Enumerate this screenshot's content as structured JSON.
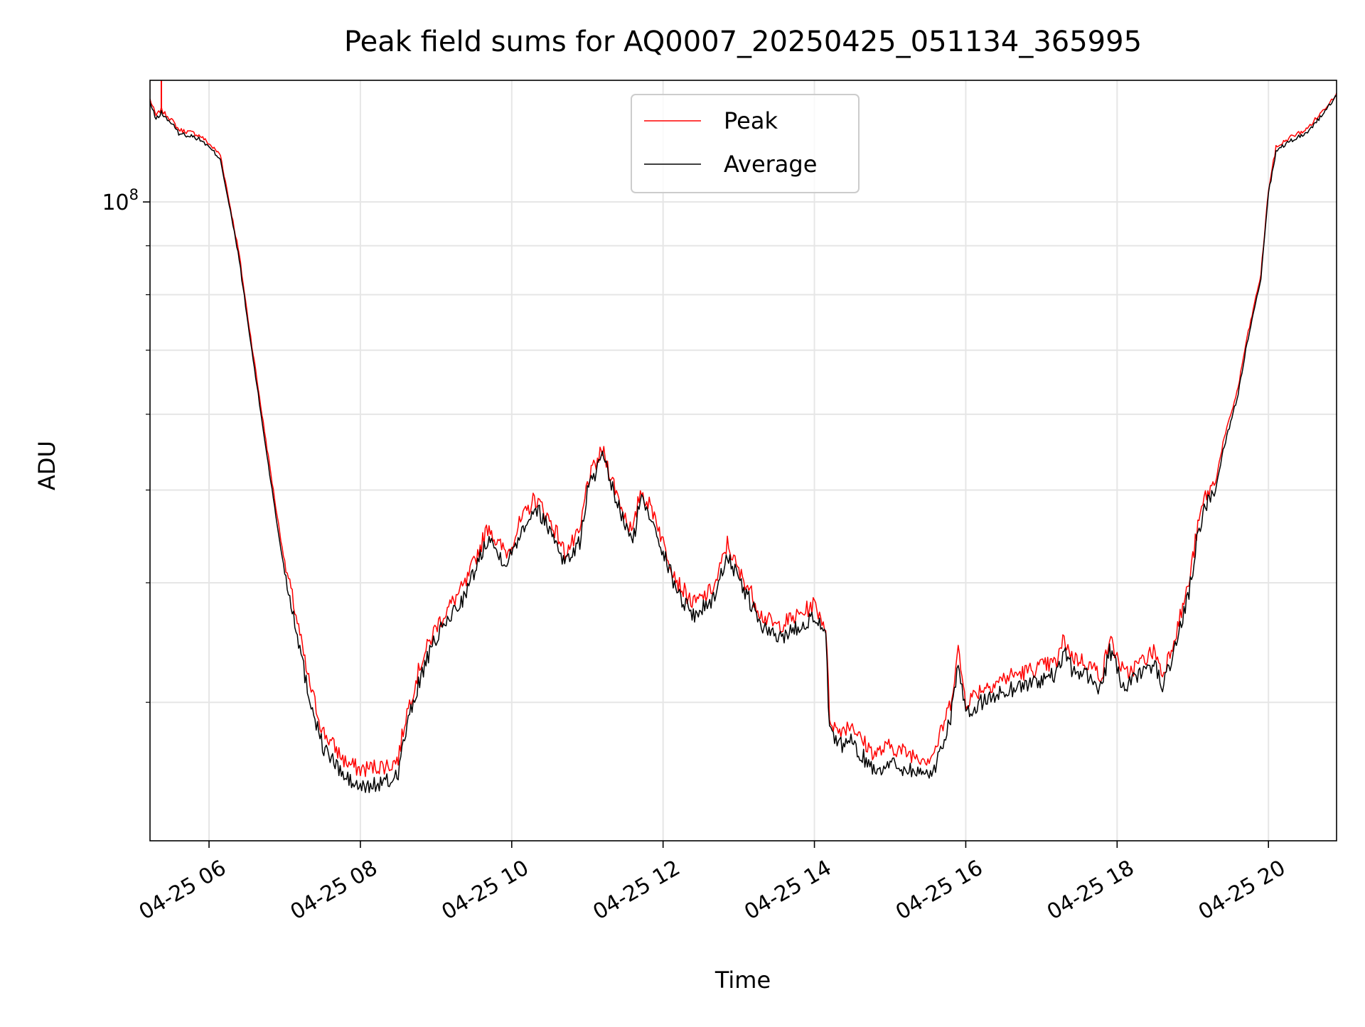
{
  "chart_data": {
    "type": "line",
    "title": "Peak field sums for AQ0007_20250425_051134_365995",
    "xlabel": "Time",
    "ylabel": "ADU",
    "yscale": "log",
    "ylim": [
      21500000,
      134000000
    ],
    "xlim_hours": [
      5.22,
      20.9
    ],
    "grid": true,
    "legend_position": "top-center",
    "x_tick_labels": [
      {
        "hour": 6,
        "label": "04-25 06"
      },
      {
        "hour": 8,
        "label": "04-25 08"
      },
      {
        "hour": 10,
        "label": "04-25 10"
      },
      {
        "hour": 12,
        "label": "04-25 12"
      },
      {
        "hour": 14,
        "label": "04-25 14"
      },
      {
        "hour": 16,
        "label": "04-25 16"
      },
      {
        "hour": 18,
        "label": "04-25 18"
      },
      {
        "hour": 20,
        "label": "04-25 20"
      }
    ],
    "y_major_tick": {
      "value": 100000000,
      "base": "10",
      "exponent": "8"
    },
    "y_minor_ticks": [
      30000000,
      40000000,
      50000000,
      60000000,
      70000000,
      80000000,
      90000000
    ],
    "series": [
      {
        "name": "Peak",
        "color": "#ff0000",
        "spike": {
          "hour": 5.37,
          "value": 134000000
        },
        "x_hours": [
          5.22,
          5.3,
          5.37,
          5.4,
          5.5,
          5.6,
          5.8,
          5.9,
          6.0,
          6.1,
          6.15,
          6.3,
          6.4,
          6.5,
          6.7,
          6.9,
          7.0,
          7.15,
          7.3,
          7.5,
          7.8,
          8.0,
          8.2,
          8.4,
          8.5,
          8.6,
          8.8,
          9.0,
          9.2,
          9.4,
          9.5,
          9.7,
          9.8,
          9.95,
          10.1,
          10.3,
          10.4,
          10.6,
          10.7,
          10.9,
          11.0,
          11.2,
          11.45,
          11.6,
          11.7,
          11.9,
          12.0,
          12.2,
          12.4,
          12.6,
          12.7,
          12.85,
          13.0,
          13.1,
          13.3,
          13.5,
          13.8,
          14.0,
          14.15,
          14.2,
          14.3,
          14.5,
          14.6,
          14.8,
          15.0,
          15.2,
          15.5,
          15.6,
          15.8,
          15.9,
          16.0,
          16.2,
          16.4,
          16.6,
          16.8,
          17.0,
          17.2,
          17.3,
          17.4,
          17.6,
          17.8,
          17.9,
          18.1,
          18.3,
          18.5,
          18.6,
          18.8,
          18.95,
          19.05,
          19.15,
          19.3,
          19.4,
          19.6,
          19.7,
          19.9,
          20.0,
          20.1,
          20.3,
          20.5,
          20.7,
          20.9
        ],
        "values": [
          128000000,
          123000000,
          125000000,
          124000000,
          122000000,
          119000000,
          118000000,
          117000000,
          115000000,
          113000000,
          112000000,
          97000000,
          88000000,
          77000000,
          60000000,
          47000000,
          42000000,
          37000000,
          32000000,
          28000000,
          26000000,
          25500000,
          25700000,
          25800000,
          26200000,
          29000000,
          33000000,
          36000000,
          38000000,
          40000000,
          42000000,
          46000000,
          44000000,
          43000000,
          46000000,
          49000000,
          48000000,
          45000000,
          43000000,
          45000000,
          51000000,
          55000000,
          48000000,
          45000000,
          50000000,
          47000000,
          44000000,
          40000000,
          38000000,
          39000000,
          40000000,
          44000000,
          41000000,
          40000000,
          37000000,
          36000000,
          37000000,
          38000000,
          36000000,
          29000000,
          28000000,
          28500000,
          27500000,
          26500000,
          27000000,
          26600000,
          26200000,
          26800000,
          30000000,
          34000000,
          30000000,
          31000000,
          31500000,
          32000000,
          32300000,
          32700000,
          33000000,
          35000000,
          33500000,
          33000000,
          32000000,
          35000000,
          32000000,
          33000000,
          34000000,
          32000000,
          36000000,
          40000000,
          45000000,
          49000000,
          51000000,
          56000000,
          64000000,
          71000000,
          84000000,
          103000000,
          114000000,
          117000000,
          119000000,
          124000000,
          130000000
        ]
      },
      {
        "name": "Average",
        "color": "#000000",
        "x_hours": [
          5.22,
          5.3,
          5.37,
          5.4,
          5.5,
          5.6,
          5.8,
          5.9,
          6.0,
          6.1,
          6.15,
          6.3,
          6.4,
          6.5,
          6.7,
          6.9,
          7.0,
          7.15,
          7.3,
          7.5,
          7.8,
          8.0,
          8.2,
          8.4,
          8.5,
          8.6,
          8.8,
          9.0,
          9.2,
          9.4,
          9.5,
          9.7,
          9.8,
          9.95,
          10.1,
          10.3,
          10.4,
          10.6,
          10.7,
          10.9,
          11.0,
          11.2,
          11.45,
          11.6,
          11.7,
          11.9,
          12.0,
          12.2,
          12.4,
          12.6,
          12.7,
          12.85,
          13.0,
          13.1,
          13.3,
          13.5,
          13.8,
          14.0,
          14.15,
          14.2,
          14.3,
          14.5,
          14.6,
          14.8,
          15.0,
          15.2,
          15.5,
          15.6,
          15.8,
          15.9,
          16.0,
          16.2,
          16.4,
          16.6,
          16.8,
          17.0,
          17.2,
          17.3,
          17.4,
          17.6,
          17.8,
          17.9,
          18.1,
          18.3,
          18.5,
          18.6,
          18.8,
          18.95,
          19.05,
          19.15,
          19.3,
          19.4,
          19.6,
          19.7,
          19.9,
          20.0,
          20.1,
          20.3,
          20.5,
          20.7,
          20.9
        ],
        "values": [
          127000000,
          122000000,
          124000000,
          123000000,
          121000000,
          118000000,
          117000000,
          116000000,
          114000000,
          112000000,
          111000000,
          96000000,
          87000000,
          76000000,
          59000000,
          46000000,
          41000000,
          36000000,
          31000000,
          27000000,
          25000000,
          24400000,
          24600000,
          24800000,
          25400000,
          28000000,
          32000000,
          35000000,
          37000000,
          39000000,
          41000000,
          45000000,
          43000000,
          42000000,
          45000000,
          48000000,
          47000000,
          44000000,
          42000000,
          44000000,
          50000000,
          54000000,
          47000000,
          44000000,
          49000000,
          46000000,
          43000000,
          39000000,
          37000000,
          38000000,
          39000000,
          43000000,
          40000000,
          39000000,
          36000000,
          35000000,
          36000000,
          37000000,
          35000000,
          28000000,
          27000000,
          27300000,
          26500000,
          25500000,
          25900000,
          25600000,
          25200000,
          25700000,
          29000000,
          33000000,
          29000000,
          30000000,
          30500000,
          31000000,
          31300000,
          31700000,
          32000000,
          34000000,
          32500000,
          32000000,
          31000000,
          34000000,
          31000000,
          32000000,
          33000000,
          31000000,
          35000000,
          39000000,
          44000000,
          48000000,
          50000000,
          55000000,
          63000000,
          70000000,
          83000000,
          102000000,
          113000000,
          116000000,
          118000000,
          123000000,
          129000000
        ]
      }
    ]
  }
}
